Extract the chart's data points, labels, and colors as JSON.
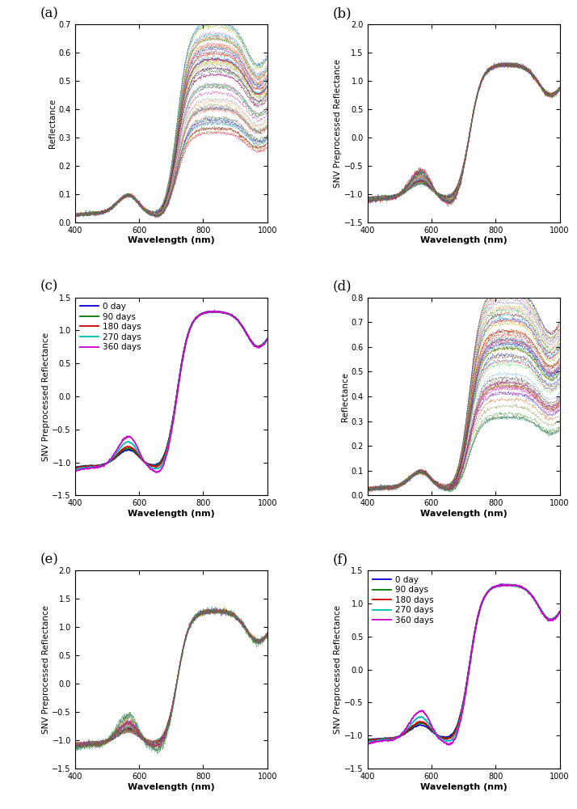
{
  "panels": [
    "a",
    "b",
    "c",
    "d",
    "e",
    "f"
  ],
  "wavelength_range": [
    400,
    1000
  ],
  "n_wavelengths": 300,
  "n_samples_ab": 60,
  "n_samples_de": 60,
  "n_samples_ef": 50,
  "day_colors": {
    "0 day": "#0000CC",
    "90 days": "#007700",
    "180 days": "#CC0000",
    "270 days": "#00BBBB",
    "360 days": "#CC00CC"
  },
  "day_labels": [
    "0 day",
    "90 days",
    "180 days",
    "270 days",
    "360 days"
  ],
  "panel_labels": {
    "a": {
      "label": "(a)",
      "ylabel": "Reflectance",
      "ylim": [
        0,
        0.7
      ],
      "yticks": [
        0.0,
        0.1,
        0.2,
        0.3,
        0.4,
        0.5,
        0.6,
        0.7
      ]
    },
    "b": {
      "label": "(b)",
      "ylabel": "SNV Preprocessed Reflectance",
      "ylim": [
        -1.5,
        2.0
      ],
      "yticks": [
        -1.5,
        -1.0,
        -0.5,
        0.0,
        0.5,
        1.0,
        1.5,
        2.0
      ]
    },
    "c": {
      "label": "(c)",
      "ylabel": "SNV Preprocessed Reflectance",
      "ylim": [
        -1.5,
        1.5
      ],
      "yticks": [
        -1.5,
        -1.0,
        -0.5,
        0.0,
        0.5,
        1.0,
        1.5
      ]
    },
    "d": {
      "label": "(d)",
      "ylabel": "Reflectance",
      "ylim": [
        0,
        0.8
      ],
      "yticks": [
        0.0,
        0.1,
        0.2,
        0.3,
        0.4,
        0.5,
        0.6,
        0.7,
        0.8
      ]
    },
    "e": {
      "label": "(e)",
      "ylabel": "SNV Preprocessed Reflectance",
      "ylim": [
        -1.5,
        2.0
      ],
      "yticks": [
        -1.5,
        -1.0,
        -0.5,
        0.0,
        0.5,
        1.0,
        1.5,
        2.0
      ]
    },
    "f": {
      "label": "(f)",
      "ylabel": "SNV Preprocessed Reflectance",
      "ylim": [
        -1.5,
        1.5
      ],
      "yticks": [
        -1.5,
        -1.0,
        -0.5,
        0.0,
        0.5,
        1.0,
        1.5
      ]
    }
  }
}
